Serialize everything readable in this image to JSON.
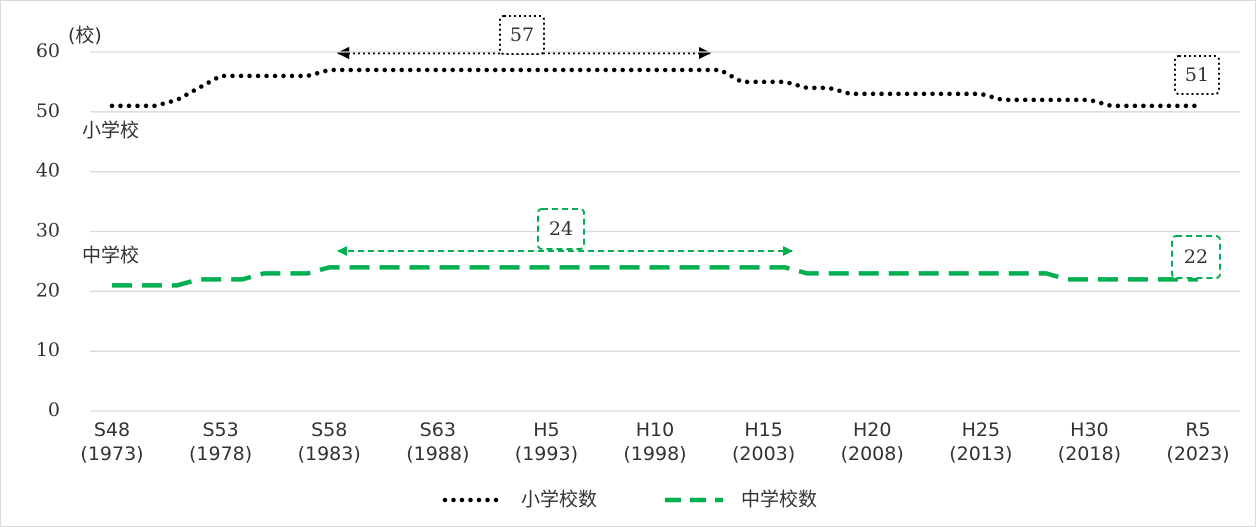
{
  "chart_data": {
    "type": "line",
    "x": [
      1973,
      1974,
      1975,
      1976,
      1977,
      1978,
      1979,
      1980,
      1981,
      1982,
      1983,
      1984,
      1985,
      1986,
      1987,
      1988,
      1989,
      1990,
      1991,
      1992,
      1993,
      1994,
      1995,
      1996,
      1997,
      1998,
      1999,
      2000,
      2001,
      2002,
      2003,
      2004,
      2005,
      2006,
      2007,
      2008,
      2009,
      2010,
      2011,
      2012,
      2013,
      2014,
      2015,
      2016,
      2017,
      2018,
      2019,
      2020,
      2021,
      2022,
      2023
    ],
    "series": [
      {
        "name": "小学校数",
        "color": "#000000",
        "style": "dotted",
        "values": [
          51,
          51,
          51,
          52,
          54,
          56,
          56,
          56,
          56,
          56,
          57,
          57,
          57,
          57,
          57,
          57,
          57,
          57,
          57,
          57,
          57,
          57,
          57,
          57,
          57,
          57,
          57,
          57,
          57,
          55,
          55,
          55,
          54,
          54,
          53,
          53,
          53,
          53,
          53,
          53,
          53,
          52,
          52,
          52,
          52,
          52,
          51,
          51,
          51,
          51,
          51
        ]
      },
      {
        "name": "中学校数",
        "color": "#00b050",
        "style": "dashed",
        "values": [
          21,
          21,
          21,
          21,
          22,
          22,
          22,
          23,
          23,
          23,
          24,
          24,
          24,
          24,
          24,
          24,
          24,
          24,
          24,
          24,
          24,
          24,
          24,
          24,
          24,
          24,
          24,
          24,
          24,
          24,
          24,
          24,
          23,
          23,
          23,
          23,
          23,
          23,
          23,
          23,
          23,
          23,
          23,
          23,
          22,
          22,
          22,
          22,
          22,
          22,
          22
        ]
      }
    ],
    "ylim": [
      0,
      60
    ],
    "yticks": [
      0,
      10,
      20,
      30,
      40,
      50,
      60
    ],
    "grid": true,
    "xlim": [
      1973,
      2023
    ],
    "xticks": [
      {
        "value": 1973,
        "label": "S48\n(1973)"
      },
      {
        "value": 1978,
        "label": "S53\n(1978)"
      },
      {
        "value": 1983,
        "label": "S58\n(1983)"
      },
      {
        "value": 1988,
        "label": "S63\n(1988)"
      },
      {
        "value": 1993,
        "label": "H5\n(1993)"
      },
      {
        "value": 1998,
        "label": "H10\n(1998)"
      },
      {
        "value": 2003,
        "label": "H15\n(2003)"
      },
      {
        "value": 2008,
        "label": "H20\n(2008)"
      },
      {
        "value": 2013,
        "label": "H25\n(2013)"
      },
      {
        "value": 2018,
        "label": "H30\n(2018)"
      },
      {
        "value": 2023,
        "label": "R5\n(2023)"
      }
    ],
    "y_unit": "(校)",
    "series_labels": [
      "小学校",
      "中学校"
    ],
    "annotations": [
      "57",
      "51",
      "24",
      "22"
    ],
    "legend": "bottom"
  }
}
